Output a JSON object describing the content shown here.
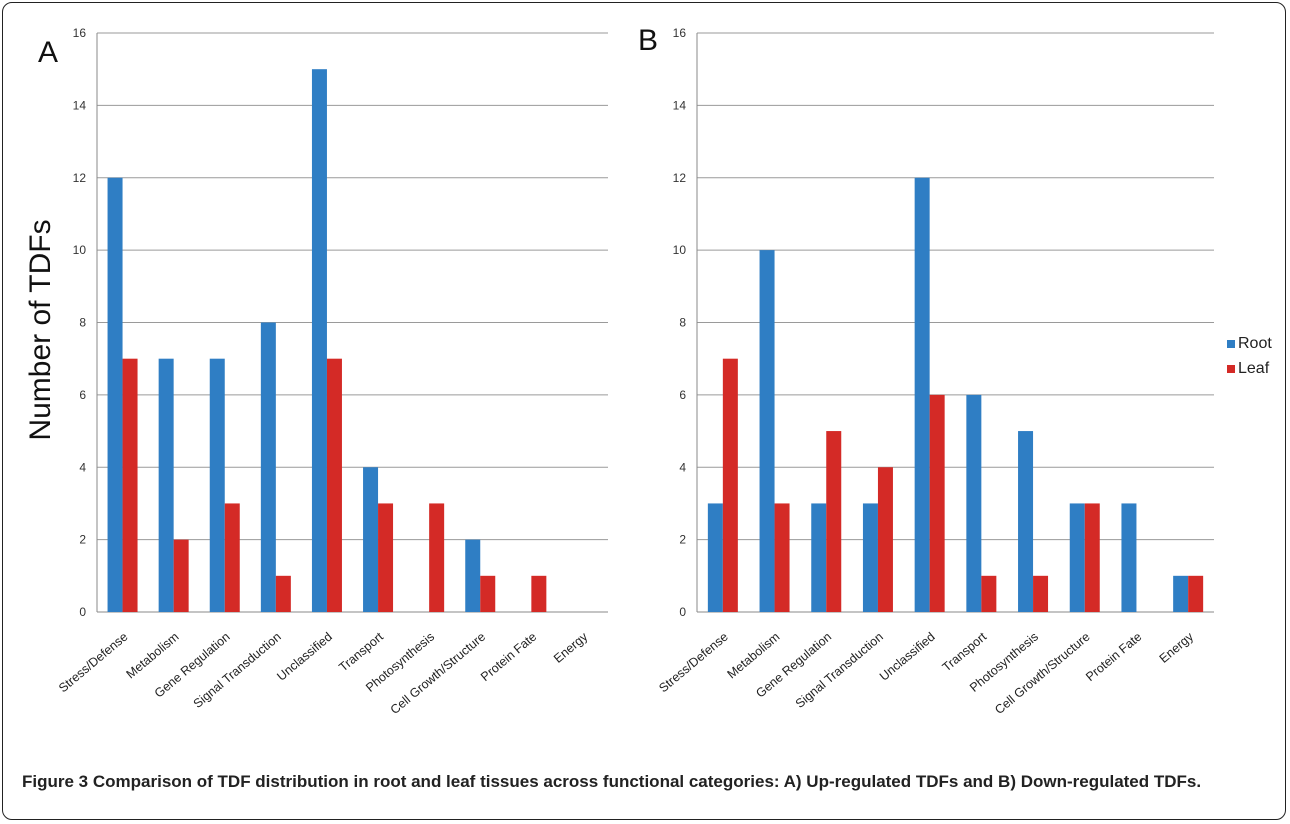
{
  "caption": {
    "label": "Figure 3",
    "text": "Comparison of TDF distribution in root and leaf tissues across functional categories: A) Up-regulated TDFs and B) Down-regulated TDFs."
  },
  "ylabel": "Number of TDFs",
  "chart_data": [
    {
      "type": "bar",
      "panel": "A",
      "categories": [
        "Stress/Defense",
        "Metabolism",
        "Gene Regulation",
        "Signal Transduction",
        "Unclassified",
        "Transport",
        "Photosynthesis",
        "Cell Growth/Structure",
        "Protein Fate",
        "Energy"
      ],
      "series": [
        {
          "name": "Root",
          "color": "#2f7ec4",
          "values": [
            12,
            7,
            7,
            8,
            15,
            4,
            0,
            2,
            0,
            0
          ]
        },
        {
          "name": "Leaf",
          "color": "#d42a26",
          "values": [
            7,
            2,
            3,
            1,
            7,
            3,
            3,
            1,
            1,
            0
          ]
        }
      ],
      "yticks": [
        0,
        2,
        4,
        6,
        8,
        10,
        12,
        14,
        16
      ],
      "ylim": [
        0,
        16
      ],
      "grid": true
    },
    {
      "type": "bar",
      "panel": "B",
      "categories": [
        "Stress/Defense",
        "Metabolism",
        "Gene Regulation",
        "Signal Transduction",
        "Unclassified",
        "Transport",
        "Photosynthesis",
        "Cell Growth/Structure",
        "Protein Fate",
        "Energy"
      ],
      "series": [
        {
          "name": "Root",
          "color": "#2f7ec4",
          "values": [
            3,
            10,
            3,
            3,
            12,
            6,
            5,
            3,
            3,
            1
          ]
        },
        {
          "name": "Leaf",
          "color": "#d42a26",
          "values": [
            7,
            3,
            5,
            4,
            6,
            1,
            1,
            3,
            0,
            1
          ]
        }
      ],
      "yticks": [
        0,
        2,
        4,
        6,
        8,
        10,
        12,
        14,
        16
      ],
      "ylim": [
        0,
        16
      ],
      "grid": true,
      "legend": "right"
    }
  ]
}
